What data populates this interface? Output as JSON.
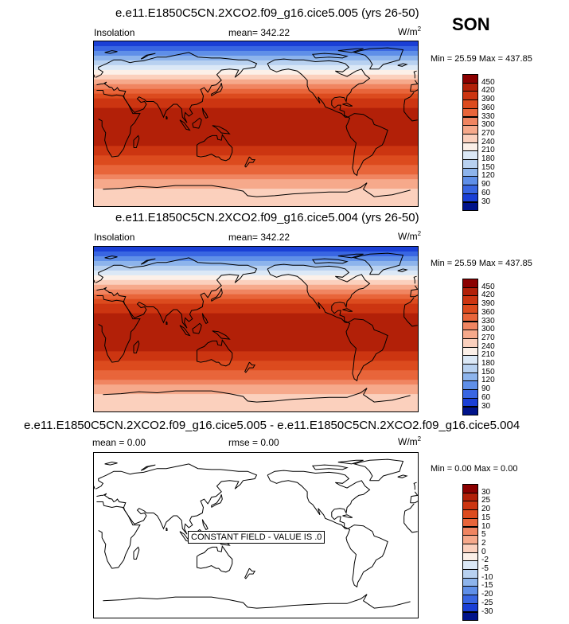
{
  "season": "SON",
  "panels": [
    {
      "title": "e.e11.E1850C5CN.2XCO2.f09_g16.cice5.005 (yrs 26-50)",
      "left_label": "Insolation",
      "mean_label": "mean= 342.22",
      "units_base": "W/m",
      "units_exp": "2",
      "minmax": "Min =  25.59 Max = 437.85"
    },
    {
      "title": "e.e11.E1850C5CN.2XCO2.f09_g16.cice5.004 (yrs 26-50)",
      "left_label": "Insolation",
      "mean_label": "mean= 342.22",
      "units_base": "W/m",
      "units_exp": "2",
      "minmax": "Min =  25.59 Max = 437.85"
    },
    {
      "title": "e.e11.E1850C5CN.2XCO2.f09_g16.cice5.005 - e.e11.E1850C5CN.2XCO2.f09_g16.cice5.004",
      "left_label": "mean =   0.00",
      "mean_label": "rmse =   0.00",
      "units_base": "W/m",
      "units_exp": "2",
      "minmax": "Min =  0.00 Max =  0.00",
      "annotation": "CONSTANT FIELD - VALUE IS .0"
    }
  ],
  "chart_data": [
    {
      "type": "heatmap",
      "title": "e.e11.E1850C5CN.2XCO2.f09_g16.cice5.005 (yrs 26-50)",
      "variable": "Insolation",
      "units": "W/m2",
      "mean": 342.22,
      "min": 25.59,
      "max": 437.85,
      "colorbar_levels": [
        "450",
        "420",
        "390",
        "360",
        "330",
        "300",
        "270",
        "240",
        "210",
        "180",
        "150",
        "120",
        "90",
        "60",
        "30"
      ],
      "colorbar_colors": [
        "#8b0000",
        "#b22008",
        "#cc3511",
        "#dc4b1e",
        "#e8653a",
        "#f08561",
        "#f6a98b",
        "#fbd0bd",
        "#fcf0e8",
        "#dbe8f6",
        "#b8d1f0",
        "#8db4ec",
        "#5f8fe8",
        "#3966e2",
        "#1a3fd6",
        "#00138a"
      ],
      "latitude_bands_from_north": [
        {
          "lat": 85,
          "value": 30
        },
        {
          "lat": 80,
          "value": 60
        },
        {
          "lat": 75,
          "value": 90
        },
        {
          "lat": 70,
          "value": 120
        },
        {
          "lat": 65,
          "value": 150
        },
        {
          "lat": 60,
          "value": 180
        },
        {
          "lat": 55,
          "value": 210
        },
        {
          "lat": 50,
          "value": 240
        },
        {
          "lat": 45,
          "value": 270
        },
        {
          "lat": 40,
          "value": 300
        },
        {
          "lat": 35,
          "value": 330
        },
        {
          "lat": 30,
          "value": 360
        },
        {
          "lat": 25,
          "value": 390
        },
        {
          "lat": 20,
          "value": 405
        },
        {
          "lat": 15,
          "value": 420
        },
        {
          "lat": 10,
          "value": 428
        },
        {
          "lat": 5,
          "value": 434
        },
        {
          "lat": 0,
          "value": 437
        },
        {
          "lat": -5,
          "value": 437
        },
        {
          "lat": -10,
          "value": 434
        },
        {
          "lat": -15,
          "value": 430
        },
        {
          "lat": -20,
          "value": 424
        },
        {
          "lat": -25,
          "value": 412
        },
        {
          "lat": -30,
          "value": 400
        },
        {
          "lat": -35,
          "value": 385
        },
        {
          "lat": -40,
          "value": 368
        },
        {
          "lat": -45,
          "value": 350
        },
        {
          "lat": -50,
          "value": 332
        },
        {
          "lat": -55,
          "value": 312
        },
        {
          "lat": -60,
          "value": 292
        },
        {
          "lat": -65,
          "value": 272
        },
        {
          "lat": -70,
          "value": 255
        },
        {
          "lat": -75,
          "value": 245
        },
        {
          "lat": -80,
          "value": 243
        },
        {
          "lat": -85,
          "value": 244
        }
      ]
    },
    {
      "type": "heatmap",
      "title": "e.e11.E1850C5CN.2XCO2.f09_g16.cice5.004 (yrs 26-50)",
      "variable": "Insolation",
      "units": "W/m2",
      "mean": 342.22,
      "min": 25.59,
      "max": 437.85,
      "colorbar_levels": [
        "450",
        "420",
        "390",
        "360",
        "330",
        "300",
        "270",
        "240",
        "210",
        "180",
        "150",
        "120",
        "90",
        "60",
        "30"
      ],
      "colorbar_colors": [
        "#8b0000",
        "#b22008",
        "#cc3511",
        "#dc4b1e",
        "#e8653a",
        "#f08561",
        "#f6a98b",
        "#fbd0bd",
        "#fcf0e8",
        "#dbe8f6",
        "#b8d1f0",
        "#8db4ec",
        "#5f8fe8",
        "#3966e2",
        "#1a3fd6",
        "#00138a"
      ],
      "latitude_bands_from_north": [
        {
          "lat": 85,
          "value": 30
        },
        {
          "lat": 80,
          "value": 60
        },
        {
          "lat": 75,
          "value": 90
        },
        {
          "lat": 70,
          "value": 120
        },
        {
          "lat": 65,
          "value": 150
        },
        {
          "lat": 60,
          "value": 180
        },
        {
          "lat": 55,
          "value": 210
        },
        {
          "lat": 50,
          "value": 240
        },
        {
          "lat": 45,
          "value": 270
        },
        {
          "lat": 40,
          "value": 300
        },
        {
          "lat": 35,
          "value": 330
        },
        {
          "lat": 30,
          "value": 360
        },
        {
          "lat": 25,
          "value": 390
        },
        {
          "lat": 20,
          "value": 405
        },
        {
          "lat": 15,
          "value": 420
        },
        {
          "lat": 10,
          "value": 428
        },
        {
          "lat": 5,
          "value": 434
        },
        {
          "lat": 0,
          "value": 437
        },
        {
          "lat": -5,
          "value": 437
        },
        {
          "lat": -10,
          "value": 434
        },
        {
          "lat": -15,
          "value": 430
        },
        {
          "lat": -20,
          "value": 424
        },
        {
          "lat": -25,
          "value": 412
        },
        {
          "lat": -30,
          "value": 400
        },
        {
          "lat": -35,
          "value": 385
        },
        {
          "lat": -40,
          "value": 368
        },
        {
          "lat": -45,
          "value": 350
        },
        {
          "lat": -50,
          "value": 332
        },
        {
          "lat": -55,
          "value": 312
        },
        {
          "lat": -60,
          "value": 292
        },
        {
          "lat": -65,
          "value": 272
        },
        {
          "lat": -70,
          "value": 255
        },
        {
          "lat": -75,
          "value": 245
        },
        {
          "lat": -80,
          "value": 243
        },
        {
          "lat": -85,
          "value": 244
        }
      ]
    },
    {
      "type": "heatmap",
      "title": "e.e11.E1850C5CN.2XCO2.f09_g16.cice5.005 - e.e11.E1850C5CN.2XCO2.f09_g16.cice5.004",
      "units": "W/m2",
      "mean": 0.0,
      "rmse": 0.0,
      "min": 0.0,
      "max": 0.0,
      "constant_value": 0,
      "colorbar_levels": [
        "30",
        "25",
        "20",
        "15",
        "10",
        "5",
        "2",
        "0",
        "-2",
        "-5",
        "-10",
        "-15",
        "-20",
        "-25",
        "-30"
      ],
      "colorbar_colors": [
        "#8b0000",
        "#b22008",
        "#cc3511",
        "#dc4b1e",
        "#e8653a",
        "#f08561",
        "#f6a98b",
        "#fbd0bd",
        "#fcf0e8",
        "#dbe8f6",
        "#b8d1f0",
        "#8db4ec",
        "#5f8fe8",
        "#3966e2",
        "#1a3fd6",
        "#00138a"
      ]
    }
  ]
}
